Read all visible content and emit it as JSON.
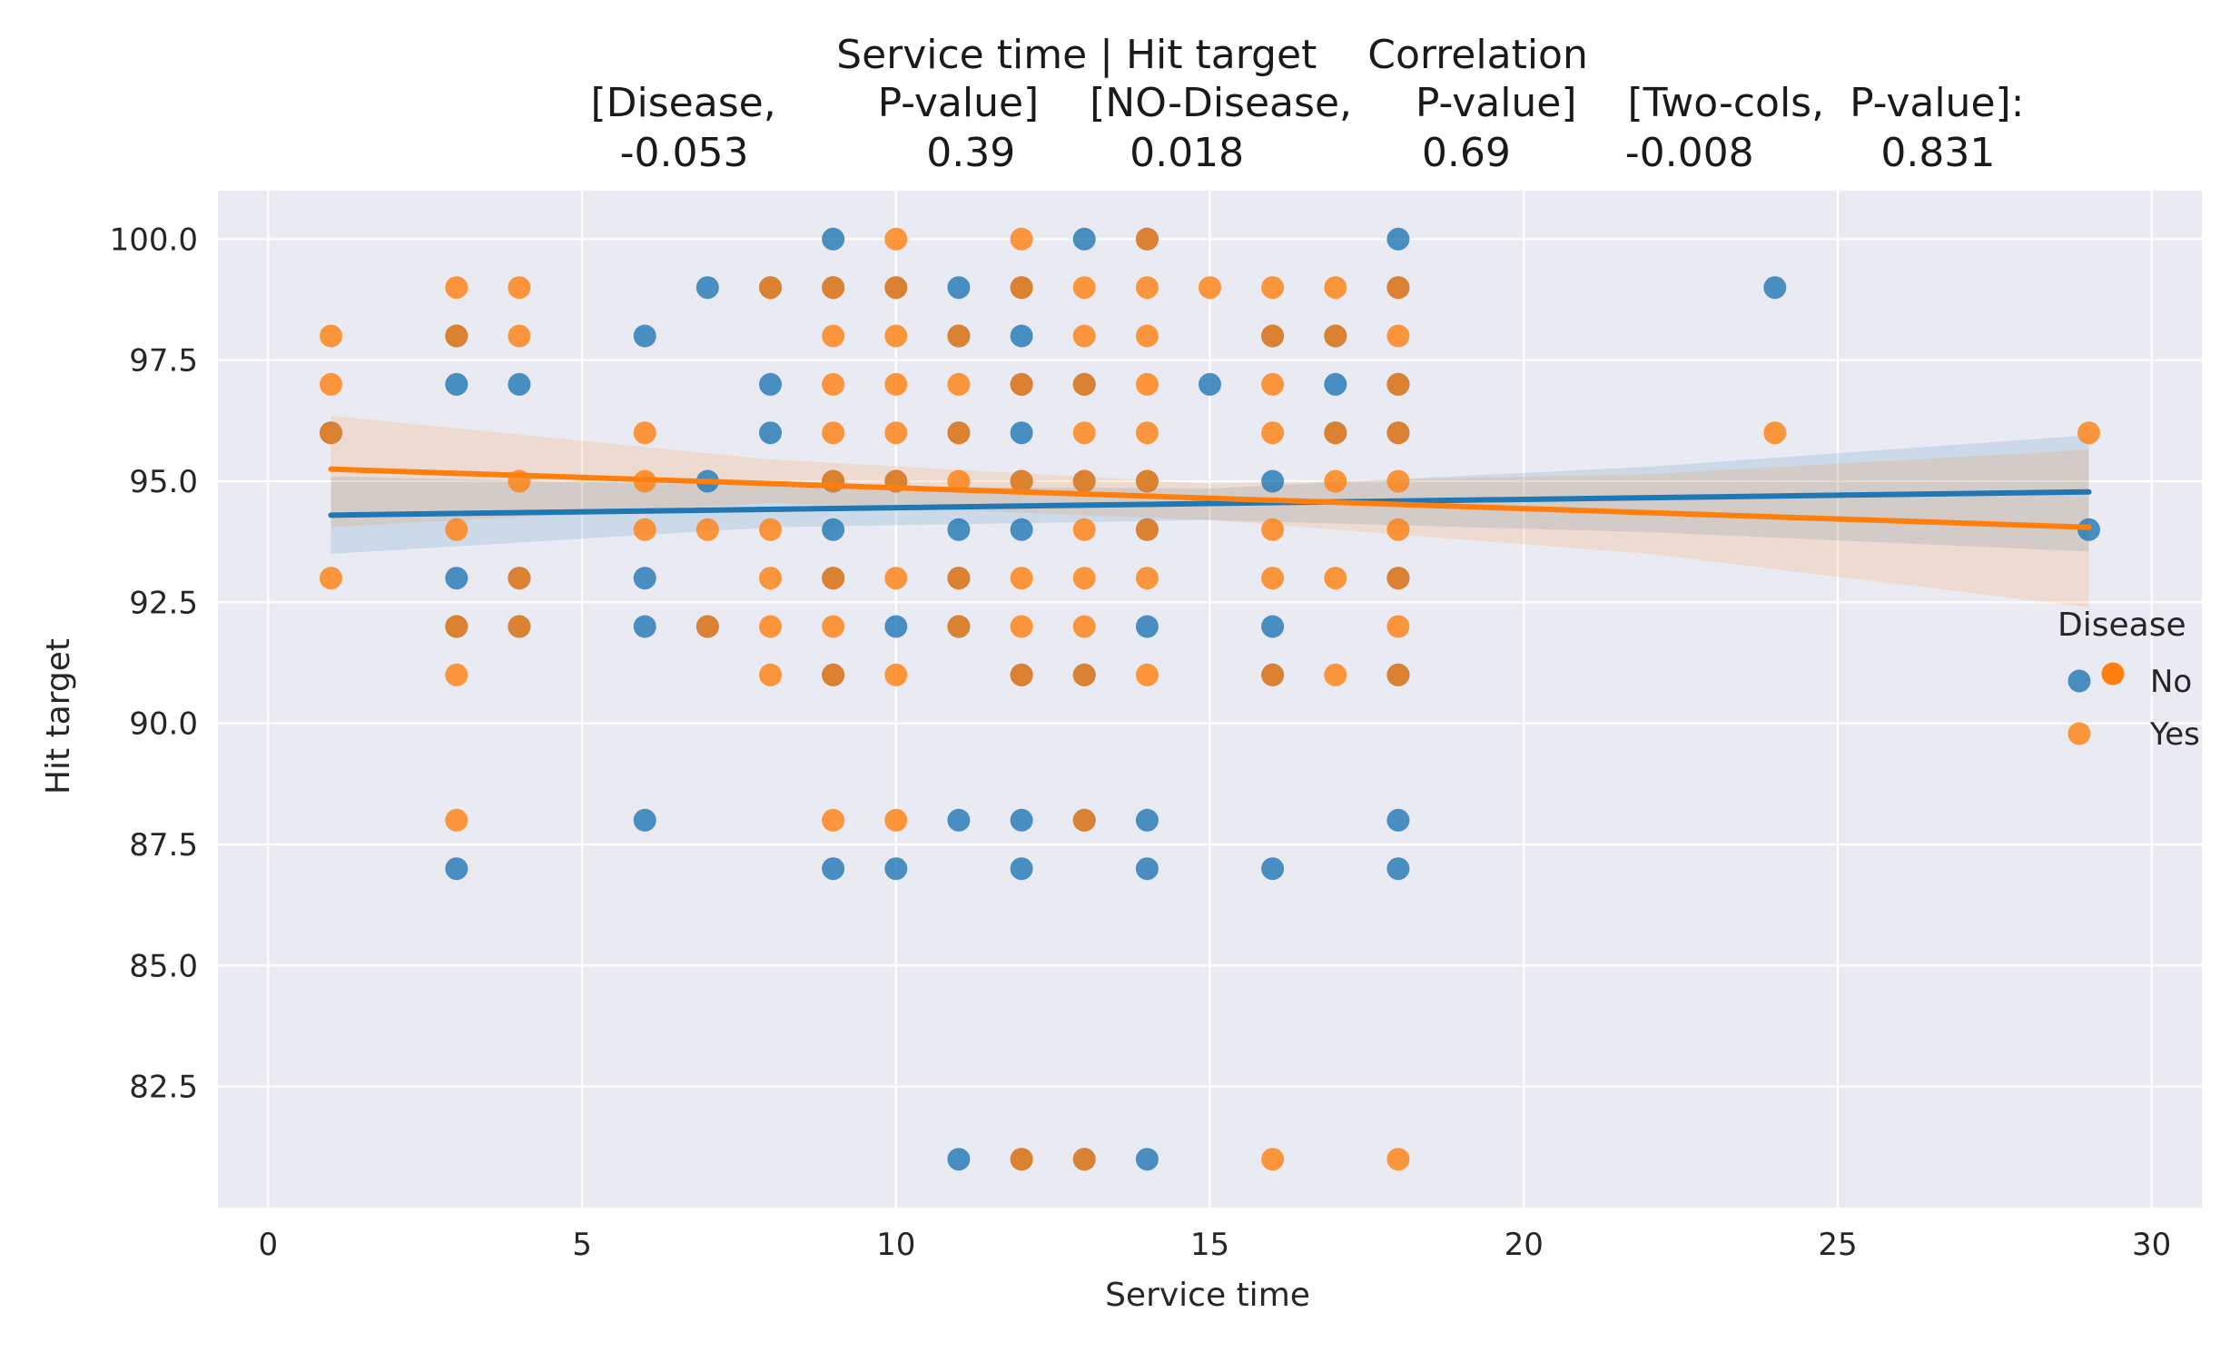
{
  "chart_data": {
    "type": "scatter",
    "title_lines": [
      "Service time | Hit target    Correlation",
      "[Disease,        P-value]    [NO-Disease,     P-value]    [Two-cols,  P-value]:",
      "-0.053              0.39         0.018              0.69         -0.008          0.831"
    ],
    "xlabel": "Service time",
    "ylabel": "Hit target",
    "xlim": [
      -0.8,
      30.8
    ],
    "ylim": [
      80.0,
      101.0
    ],
    "xticks": [
      0,
      5,
      10,
      15,
      20,
      25,
      30
    ],
    "yticks": [
      82.5,
      85.0,
      87.5,
      90.0,
      92.5,
      95.0,
      97.5,
      100.0
    ],
    "grid": true,
    "legend": {
      "title": "Disease",
      "placement": "right",
      "entries": [
        "No",
        "Yes"
      ]
    },
    "colors": {
      "No": "#1f77b4",
      "Yes": "#ff7f0e",
      "background": "#eaeaf2",
      "grid": "#ffffff"
    },
    "series": [
      {
        "name": "No",
        "points": [
          [
            1,
            96
          ],
          [
            3,
            98
          ],
          [
            3,
            97
          ],
          [
            3,
            93
          ],
          [
            3,
            92
          ],
          [
            3,
            87
          ],
          [
            4,
            97
          ],
          [
            4,
            93
          ],
          [
            4,
            92
          ],
          [
            6,
            98
          ],
          [
            6,
            93
          ],
          [
            6,
            92
          ],
          [
            6,
            88
          ],
          [
            7,
            99
          ],
          [
            7,
            95
          ],
          [
            7,
            92
          ],
          [
            8,
            99
          ],
          [
            8,
            97
          ],
          [
            8,
            96
          ],
          [
            9,
            100
          ],
          [
            9,
            99
          ],
          [
            9,
            95
          ],
          [
            9,
            94
          ],
          [
            9,
            93
          ],
          [
            9,
            91
          ],
          [
            9,
            87
          ],
          [
            10,
            99
          ],
          [
            10,
            95
          ],
          [
            10,
            92
          ],
          [
            10,
            87
          ],
          [
            11,
            99
          ],
          [
            11,
            98
          ],
          [
            11,
            96
          ],
          [
            11,
            94
          ],
          [
            11,
            93
          ],
          [
            11,
            92
          ],
          [
            11,
            88
          ],
          [
            11,
            81
          ],
          [
            12,
            99
          ],
          [
            12,
            98
          ],
          [
            12,
            97
          ],
          [
            12,
            96
          ],
          [
            12,
            95
          ],
          [
            12,
            94
          ],
          [
            12,
            91
          ],
          [
            12,
            88
          ],
          [
            12,
            87
          ],
          [
            12,
            81
          ],
          [
            13,
            100
          ],
          [
            13,
            97
          ],
          [
            13,
            95
          ],
          [
            13,
            91
          ],
          [
            13,
            88
          ],
          [
            13,
            81
          ],
          [
            14,
            100
          ],
          [
            14,
            95
          ],
          [
            14,
            94
          ],
          [
            14,
            92
          ],
          [
            14,
            88
          ],
          [
            14,
            87
          ],
          [
            14,
            81
          ],
          [
            15,
            97
          ],
          [
            16,
            98
          ],
          [
            16,
            95
          ],
          [
            16,
            92
          ],
          [
            16,
            91
          ],
          [
            16,
            87
          ],
          [
            17,
            98
          ],
          [
            17,
            97
          ],
          [
            17,
            96
          ],
          [
            18,
            100
          ],
          [
            18,
            99
          ],
          [
            18,
            97
          ],
          [
            18,
            96
          ],
          [
            18,
            93
          ],
          [
            18,
            91
          ],
          [
            18,
            88
          ],
          [
            18,
            87
          ],
          [
            24,
            99
          ],
          [
            29,
            94
          ]
        ],
        "regression": {
          "x": [
            1,
            29
          ],
          "y": [
            94.3,
            94.78
          ]
        },
        "ci_band": {
          "x": [
            1,
            8,
            15,
            22,
            29
          ],
          "upper": [
            95.1,
            94.9,
            94.85,
            95.3,
            95.95
          ],
          "lower": [
            93.5,
            94.05,
            94.2,
            93.95,
            93.55
          ]
        }
      },
      {
        "name": "Yes",
        "points": [
          [
            1,
            98
          ],
          [
            1,
            97
          ],
          [
            1,
            96
          ],
          [
            1,
            93
          ],
          [
            3,
            99
          ],
          [
            3,
            98
          ],
          [
            3,
            94
          ],
          [
            3,
            92
          ],
          [
            3,
            91
          ],
          [
            3,
            88
          ],
          [
            4,
            99
          ],
          [
            4,
            98
          ],
          [
            4,
            95
          ],
          [
            4,
            93
          ],
          [
            4,
            92
          ],
          [
            6,
            96
          ],
          [
            6,
            95
          ],
          [
            6,
            94
          ],
          [
            7,
            94
          ],
          [
            7,
            92
          ],
          [
            8,
            99
          ],
          [
            8,
            94
          ],
          [
            8,
            93
          ],
          [
            8,
            92
          ],
          [
            8,
            91
          ],
          [
            9,
            99
          ],
          [
            9,
            98
          ],
          [
            9,
            97
          ],
          [
            9,
            96
          ],
          [
            9,
            95
          ],
          [
            9,
            93
          ],
          [
            9,
            92
          ],
          [
            9,
            91
          ],
          [
            9,
            88
          ],
          [
            10,
            100
          ],
          [
            10,
            99
          ],
          [
            10,
            98
          ],
          [
            10,
            97
          ],
          [
            10,
            96
          ],
          [
            10,
            95
          ],
          [
            10,
            93
          ],
          [
            10,
            91
          ],
          [
            10,
            88
          ],
          [
            11,
            98
          ],
          [
            11,
            97
          ],
          [
            11,
            96
          ],
          [
            11,
            95
          ],
          [
            11,
            93
          ],
          [
            11,
            92
          ],
          [
            12,
            100
          ],
          [
            12,
            99
          ],
          [
            12,
            97
          ],
          [
            12,
            95
          ],
          [
            12,
            93
          ],
          [
            12,
            92
          ],
          [
            12,
            91
          ],
          [
            12,
            81
          ],
          [
            13,
            99
          ],
          [
            13,
            98
          ],
          [
            13,
            97
          ],
          [
            13,
            96
          ],
          [
            13,
            95
          ],
          [
            13,
            94
          ],
          [
            13,
            93
          ],
          [
            13,
            92
          ],
          [
            13,
            91
          ],
          [
            13,
            88
          ],
          [
            13,
            81
          ],
          [
            14,
            100
          ],
          [
            14,
            99
          ],
          [
            14,
            98
          ],
          [
            14,
            97
          ],
          [
            14,
            96
          ],
          [
            14,
            95
          ],
          [
            14,
            94
          ],
          [
            14,
            93
          ],
          [
            14,
            91
          ],
          [
            15,
            99
          ],
          [
            16,
            99
          ],
          [
            16,
            98
          ],
          [
            16,
            97
          ],
          [
            16,
            96
          ],
          [
            16,
            94
          ],
          [
            16,
            93
          ],
          [
            16,
            91
          ],
          [
            16,
            81
          ],
          [
            17,
            99
          ],
          [
            17,
            98
          ],
          [
            17,
            96
          ],
          [
            17,
            95
          ],
          [
            17,
            93
          ],
          [
            17,
            91
          ],
          [
            18,
            99
          ],
          [
            18,
            98
          ],
          [
            18,
            97
          ],
          [
            18,
            96
          ],
          [
            18,
            95
          ],
          [
            18,
            94
          ],
          [
            18,
            93
          ],
          [
            18,
            92
          ],
          [
            18,
            91
          ],
          [
            18,
            81
          ],
          [
            24,
            96
          ],
          [
            29,
            96
          ]
        ],
        "regression": {
          "x": [
            1,
            29
          ],
          "y": [
            95.25,
            94.05
          ]
        },
        "ci_band": {
          "x": [
            1,
            8,
            15,
            22,
            29
          ],
          "upper": [
            96.35,
            95.45,
            94.95,
            95.15,
            95.65
          ],
          "lower": [
            94.05,
            94.55,
            94.2,
            93.5,
            92.4
          ]
        }
      }
    ]
  }
}
